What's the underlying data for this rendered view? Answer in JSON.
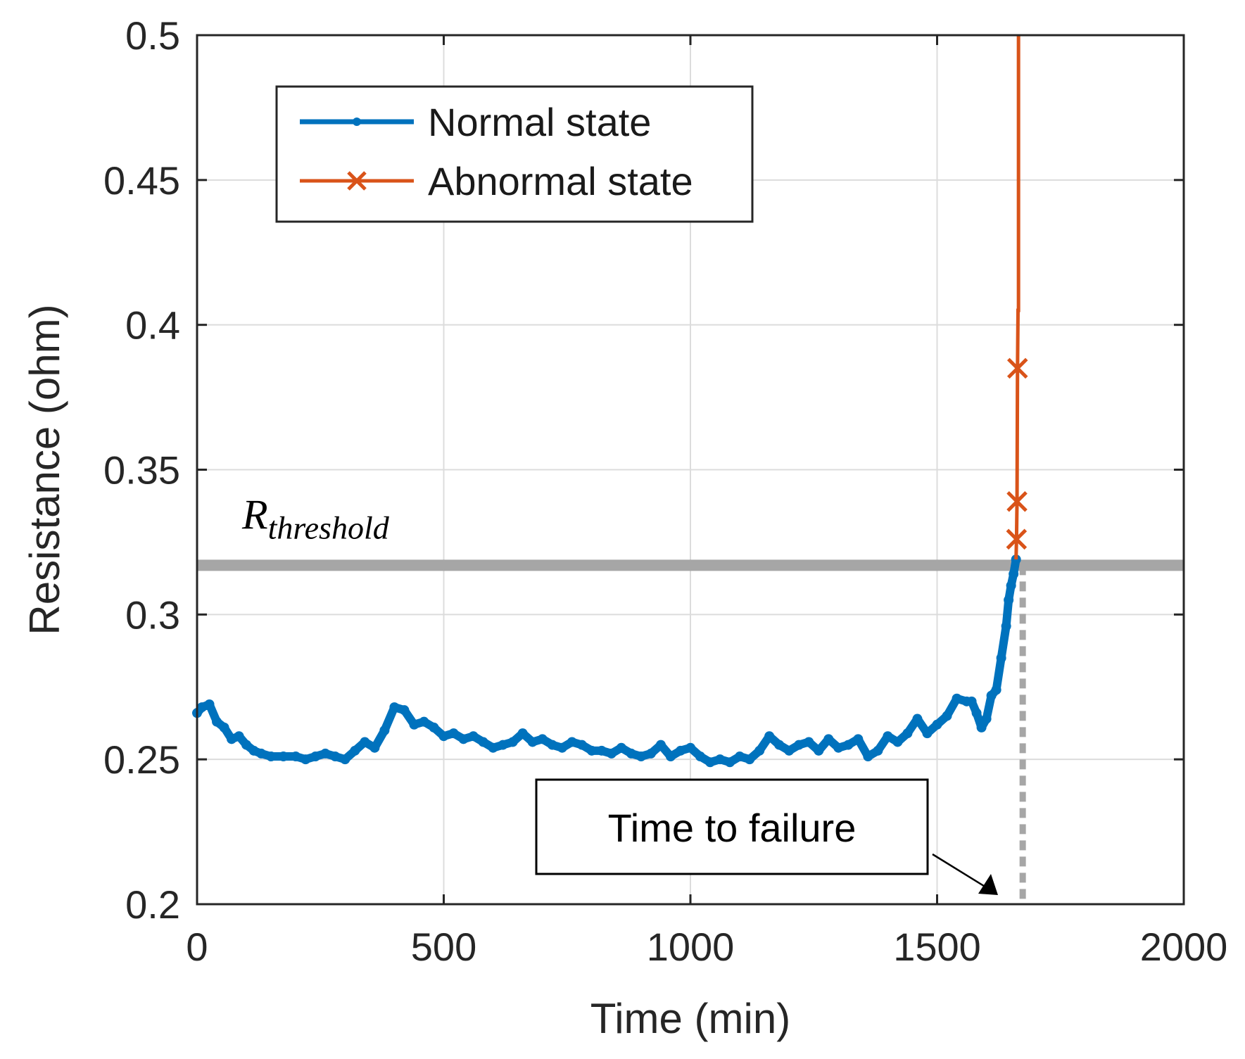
{
  "chart_data": {
    "type": "line",
    "title": "",
    "xlabel": "Time (min)",
    "ylabel": "Resistance (ohm)",
    "xlim": [
      0,
      2000
    ],
    "ylim": [
      0.2,
      0.5
    ],
    "xticks": [
      "0",
      "500",
      "1000",
      "1500",
      "2000"
    ],
    "yticks": [
      "0.2",
      "0.25",
      "0.3",
      "0.35",
      "0.4",
      "0.45",
      "0.5"
    ],
    "grid": true,
    "legend_position": "top-left",
    "threshold": {
      "value": 0.317,
      "label_base": "R",
      "label_sub": "threshold"
    },
    "failure_time": 1665,
    "annotation": {
      "text": "Time to failure"
    },
    "series": [
      {
        "name": "Normal state",
        "color": "#0072BD",
        "marker": "dot",
        "x": [
          0,
          10,
          25,
          40,
          55,
          70,
          85,
          100,
          115,
          130,
          150,
          175,
          200,
          220,
          240,
          260,
          280,
          300,
          320,
          340,
          360,
          380,
          400,
          420,
          440,
          460,
          480,
          500,
          520,
          540,
          560,
          580,
          600,
          620,
          640,
          660,
          680,
          700,
          720,
          740,
          760,
          780,
          800,
          820,
          840,
          860,
          880,
          900,
          920,
          940,
          960,
          980,
          1000,
          1020,
          1040,
          1060,
          1080,
          1100,
          1120,
          1140,
          1160,
          1180,
          1200,
          1220,
          1240,
          1260,
          1280,
          1300,
          1320,
          1340,
          1360,
          1380,
          1400,
          1420,
          1440,
          1460,
          1480,
          1500,
          1520,
          1540,
          1560,
          1570,
          1580,
          1590,
          1600,
          1610,
          1620,
          1630,
          1640,
          1645,
          1650,
          1655,
          1660
        ],
        "values": [
          0.266,
          0.268,
          0.269,
          0.263,
          0.261,
          0.257,
          0.258,
          0.255,
          0.253,
          0.252,
          0.251,
          0.251,
          0.251,
          0.25,
          0.251,
          0.252,
          0.251,
          0.25,
          0.253,
          0.256,
          0.254,
          0.26,
          0.268,
          0.267,
          0.262,
          0.263,
          0.261,
          0.258,
          0.259,
          0.257,
          0.258,
          0.256,
          0.254,
          0.255,
          0.256,
          0.259,
          0.256,
          0.257,
          0.255,
          0.254,
          0.256,
          0.255,
          0.253,
          0.253,
          0.252,
          0.254,
          0.252,
          0.251,
          0.252,
          0.255,
          0.251,
          0.253,
          0.254,
          0.251,
          0.249,
          0.25,
          0.249,
          0.251,
          0.25,
          0.253,
          0.258,
          0.255,
          0.253,
          0.255,
          0.256,
          0.253,
          0.257,
          0.254,
          0.255,
          0.257,
          0.251,
          0.253,
          0.258,
          0.256,
          0.259,
          0.264,
          0.259,
          0.262,
          0.265,
          0.271,
          0.27,
          0.27,
          0.266,
          0.261,
          0.264,
          0.272,
          0.274,
          0.285,
          0.296,
          0.305,
          0.31,
          0.314,
          0.319
        ]
      },
      {
        "name": "Abnormal state",
        "color": "#D95319",
        "marker": "x",
        "x": [
          1660,
          1661,
          1662,
          1663,
          1664,
          1664,
          1665,
          1665
        ],
        "values": [
          0.319,
          0.326,
          0.339,
          0.385,
          0.404,
          0.405,
          0.405,
          0.5
        ],
        "marker_indices": [
          1,
          2,
          3
        ]
      }
    ]
  }
}
